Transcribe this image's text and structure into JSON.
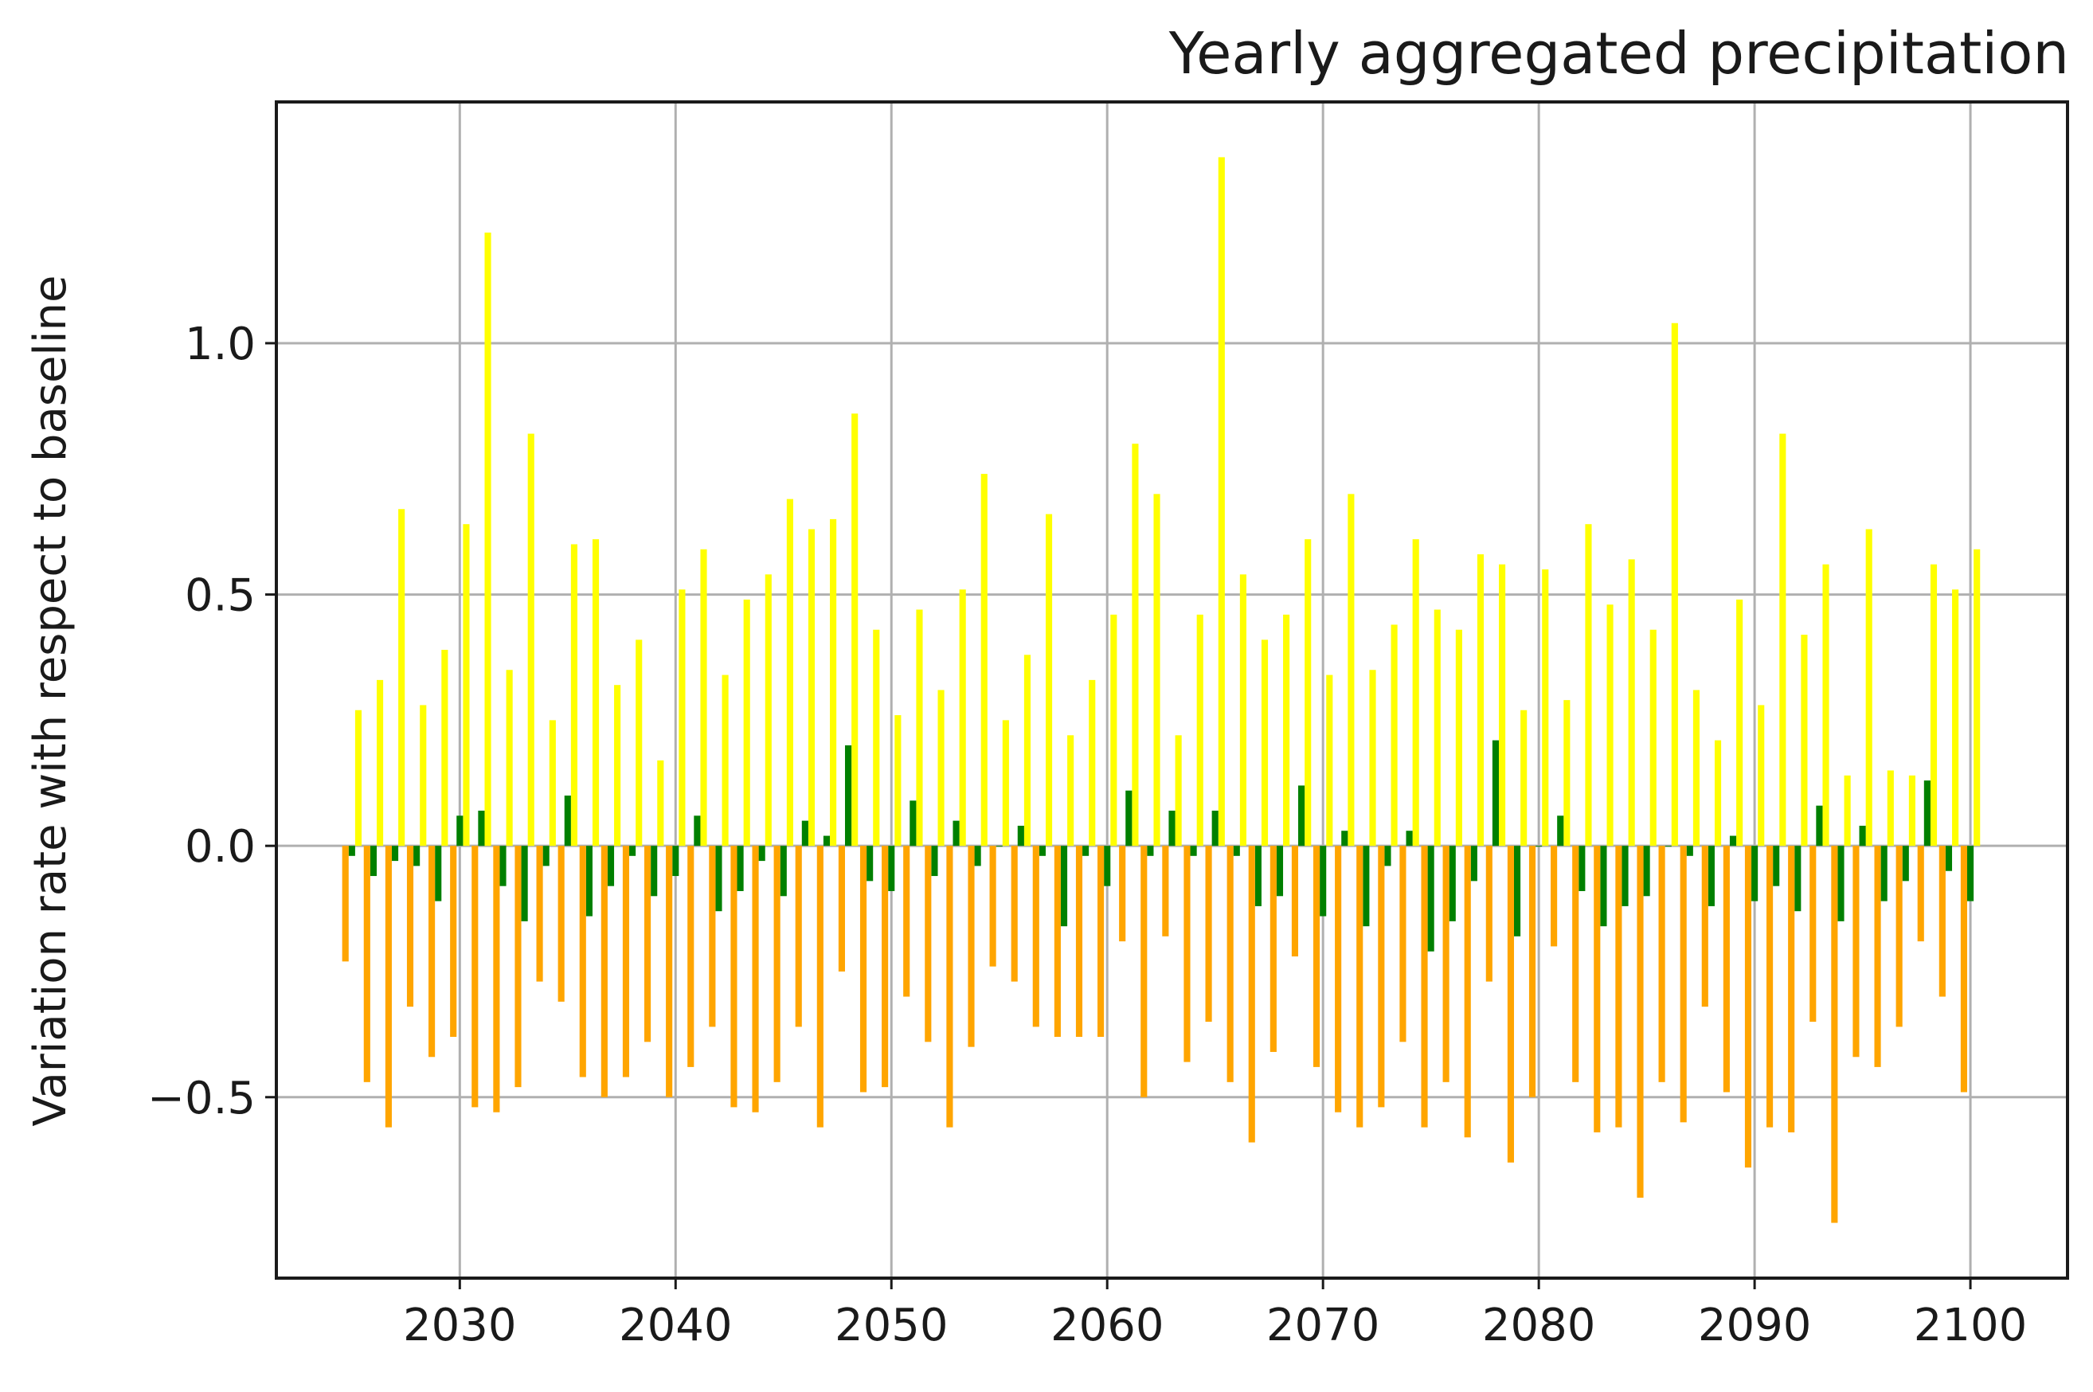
{
  "chart_data": {
    "type": "bar",
    "title": "Yearly aggregated precipitation",
    "xlabel": "",
    "ylabel": "Variation rate with respect to baseline",
    "xlim": [
      2021.5,
      2104.5
    ],
    "ylim": [
      -0.86,
      1.48
    ],
    "xticks": [
      2030,
      2040,
      2050,
      2060,
      2070,
      2080,
      2090,
      2100
    ],
    "xtick_labels": [
      "2030",
      "2040",
      "2050",
      "2060",
      "2070",
      "2080",
      "2090",
      "2100"
    ],
    "yticks": [
      -0.5,
      0.0,
      0.5,
      1.0
    ],
    "ytick_labels": [
      "−0.5",
      "0.0",
      "0.5",
      "1.0"
    ],
    "grid": true,
    "x": [
      2025,
      2026,
      2027,
      2028,
      2029,
      2030,
      2031,
      2032,
      2033,
      2034,
      2035,
      2036,
      2037,
      2038,
      2039,
      2040,
      2041,
      2042,
      2043,
      2044,
      2045,
      2046,
      2047,
      2048,
      2049,
      2050,
      2051,
      2052,
      2053,
      2054,
      2055,
      2056,
      2057,
      2058,
      2059,
      2060,
      2061,
      2062,
      2063,
      2064,
      2065,
      2066,
      2067,
      2068,
      2069,
      2070,
      2071,
      2072,
      2073,
      2074,
      2075,
      2076,
      2077,
      2078,
      2079,
      2080,
      2081,
      2082,
      2083,
      2084,
      2085,
      2086,
      2087,
      2088,
      2089,
      2090,
      2091,
      2092,
      2093,
      2094,
      2095,
      2096,
      2097,
      2098,
      2099,
      2100
    ],
    "series": [
      {
        "color": "#ffff00",
        "offset": 0.3,
        "values": [
          0.27,
          0.33,
          0.67,
          0.28,
          0.39,
          0.64,
          1.22,
          0.35,
          0.82,
          0.25,
          0.6,
          0.61,
          0.32,
          0.41,
          0.17,
          0.51,
          0.59,
          0.34,
          0.49,
          0.54,
          0.69,
          0.63,
          0.65,
          0.86,
          0.43,
          0.26,
          0.47,
          0.31,
          0.51,
          0.74,
          0.25,
          0.38,
          0.66,
          0.22,
          0.33,
          0.46,
          0.8,
          0.7,
          0.22,
          0.46,
          1.37,
          0.54,
          0.41,
          0.46,
          0.61,
          0.34,
          0.7,
          0.35,
          0.44,
          0.61,
          0.47,
          0.43,
          0.58,
          0.56,
          0.27,
          0.55,
          0.29,
          0.64,
          0.48,
          0.57,
          0.43,
          1.04,
          0.31,
          0.21,
          0.49,
          0.28,
          0.82,
          0.42,
          0.56,
          0.14,
          0.63,
          0.15,
          0.14,
          0.56,
          0.51,
          0.59
        ]
      },
      {
        "color": "#008000",
        "offset": 0.0,
        "values": [
          -0.02,
          -0.06,
          -0.03,
          -0.04,
          -0.11,
          0.06,
          0.07,
          -0.08,
          -0.15,
          -0.04,
          0.1,
          -0.14,
          -0.08,
          -0.02,
          -0.1,
          -0.06,
          0.06,
          -0.13,
          -0.09,
          -0.03,
          -0.1,
          0.05,
          0.02,
          0.2,
          -0.07,
          -0.09,
          0.09,
          -0.06,
          0.05,
          -0.04,
          0.0,
          0.04,
          -0.02,
          -0.16,
          -0.02,
          -0.08,
          0.11,
          -0.02,
          0.07,
          -0.02,
          0.07,
          -0.02,
          -0.12,
          -0.1,
          0.12,
          -0.14,
          0.03,
          -0.16,
          -0.04,
          0.03,
          -0.21,
          -0.15,
          -0.07,
          0.21,
          -0.18,
          0.0,
          0.06,
          -0.09,
          -0.16,
          -0.12,
          -0.1,
          0.0,
          -0.02,
          -0.12,
          0.02,
          -0.11,
          -0.08,
          -0.13,
          0.08,
          -0.15,
          0.04,
          -0.11,
          -0.07,
          0.13,
          -0.05,
          -0.11
        ]
      },
      {
        "color": "#ffa500",
        "offset": -0.3,
        "values": [
          -0.23,
          -0.47,
          -0.56,
          -0.32,
          -0.42,
          -0.38,
          -0.52,
          -0.53,
          -0.48,
          -0.27,
          -0.31,
          -0.46,
          -0.5,
          -0.46,
          -0.39,
          -0.5,
          -0.44,
          -0.36,
          -0.52,
          -0.53,
          -0.47,
          -0.36,
          -0.56,
          -0.25,
          -0.49,
          -0.48,
          -0.3,
          -0.39,
          -0.56,
          -0.4,
          -0.24,
          -0.27,
          -0.36,
          -0.38,
          -0.38,
          -0.38,
          -0.19,
          -0.5,
          -0.18,
          -0.43,
          -0.35,
          -0.47,
          -0.59,
          -0.41,
          -0.22,
          -0.44,
          -0.53,
          -0.56,
          -0.52,
          -0.39,
          -0.56,
          -0.47,
          -0.58,
          -0.27,
          -0.63,
          -0.5,
          -0.2,
          -0.47,
          -0.57,
          -0.56,
          -0.7,
          -0.47,
          -0.55,
          -0.32,
          -0.49,
          -0.64,
          -0.56,
          -0.57,
          -0.35,
          -0.75,
          -0.42,
          -0.44,
          -0.36,
          -0.19,
          -0.3,
          -0.49
        ]
      }
    ]
  }
}
